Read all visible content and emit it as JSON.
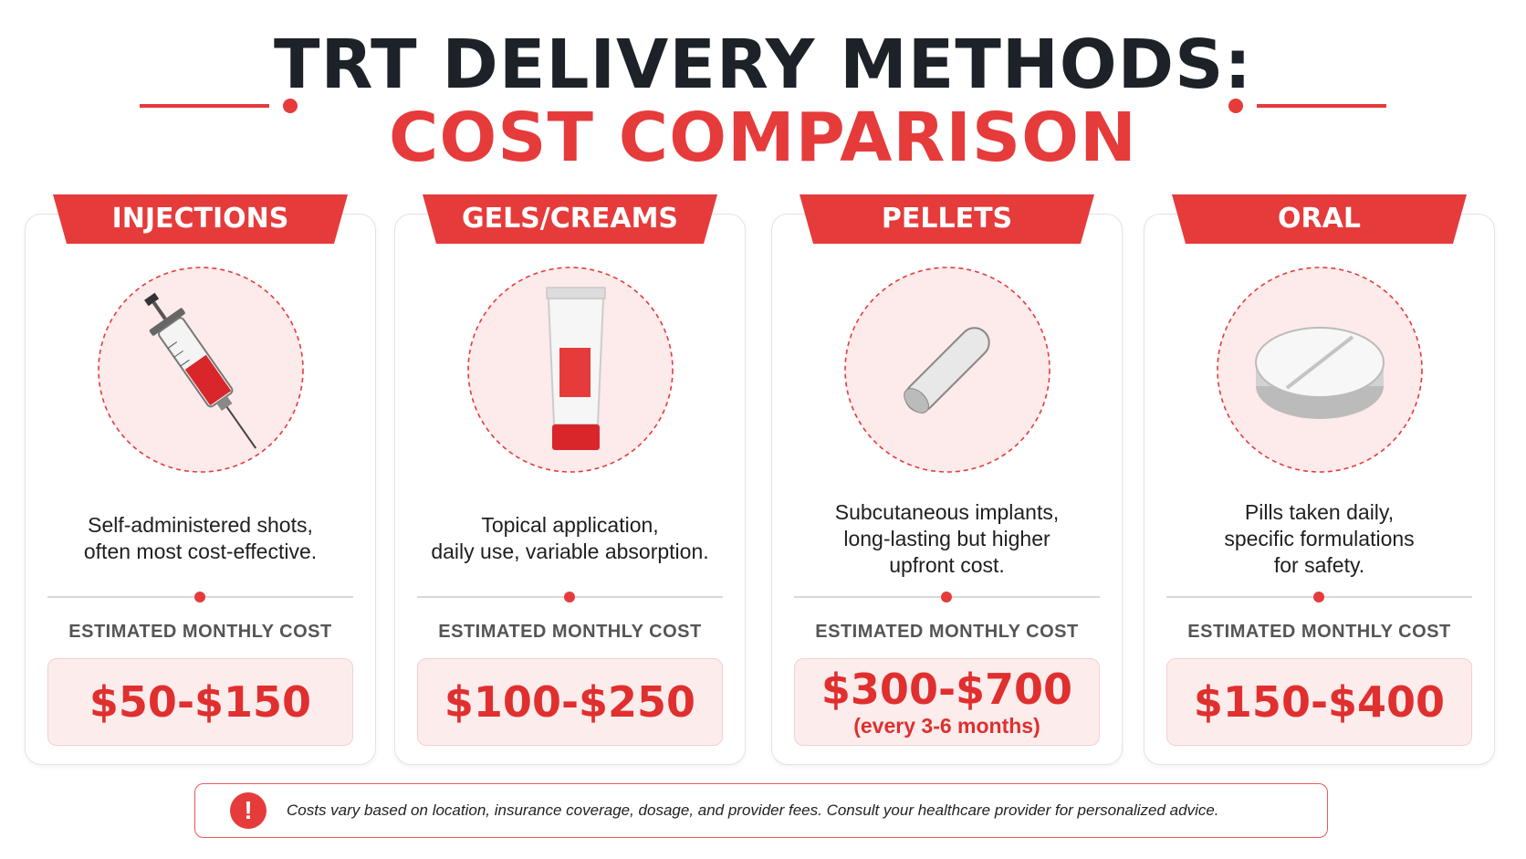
{
  "header": {
    "title": "TRT DELIVERY METHODS:",
    "subtitle": "COST COMPARISON"
  },
  "cards": [
    {
      "label": "INJECTIONS",
      "description": [
        "Self-administered shots,",
        "often most cost-effective."
      ],
      "cost_label": "ESTIMATED MONTHLY COST",
      "cost": "$50-$150"
    },
    {
      "label": "GELS/CREAMS",
      "description": [
        "Topical application,",
        "daily use, variable absorption."
      ],
      "cost_label": "ESTIMATED MONTHLY COST",
      "cost": "$100-$250"
    },
    {
      "label": "PELLETS",
      "description": [
        "Subcutaneous implants,",
        "long-lasting but higher",
        "upfront cost."
      ],
      "cost_label": "ESTIMATED MONTHLY COST",
      "cost": "$300-$700",
      "cost_note": "(every 3-6 months)"
    },
    {
      "label": "ORAL",
      "description": [
        "Pills taken daily,",
        "specific formulations",
        "for safety."
      ],
      "cost_label": "ESTIMATED MONTHLY COST",
      "cost": "$150-$400"
    }
  ],
  "footer": {
    "note": "Costs vary based on location, insurance coverage, dosage, and provider fees. Consult your healthcare provider for personalized advice."
  }
}
